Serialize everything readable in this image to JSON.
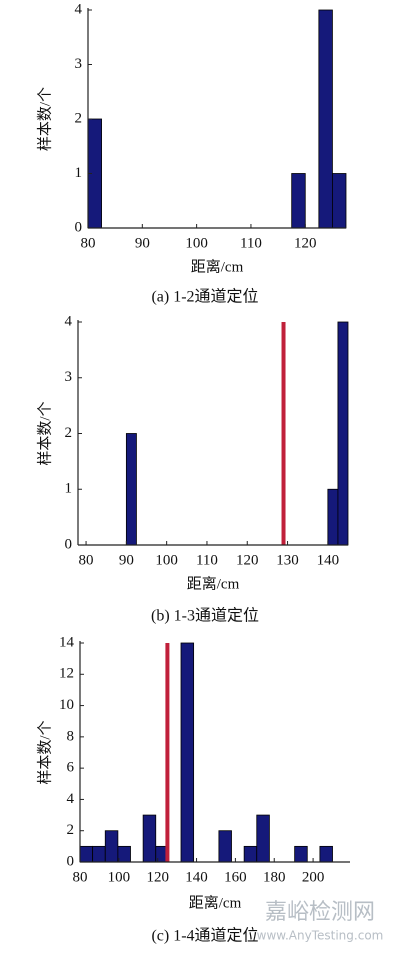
{
  "chart_data": [
    {
      "type": "histogram",
      "caption": "(a) 1-2通道定位",
      "x_label": "距离/cm",
      "y_label": "样本数/个",
      "color": "#15197a",
      "bins": [
        80,
        82.5,
        85,
        87.5,
        90,
        92.5,
        95,
        97.5,
        100,
        102.5,
        105,
        107.5,
        110,
        112.5,
        115,
        117.5,
        120,
        122.5,
        125,
        127.5
      ],
      "values": [
        2,
        0,
        0,
        0,
        0,
        0,
        0,
        0,
        0,
        0,
        0,
        0,
        0,
        0,
        0,
        1,
        0,
        4,
        1
      ],
      "xlim": [
        80,
        127.5
      ],
      "xticks": [
        80,
        90,
        100,
        110,
        120
      ],
      "ylim": [
        0,
        4
      ],
      "yticks": [
        0,
        1,
        2,
        3,
        4
      ]
    },
    {
      "type": "histogram",
      "caption": "(b) 1-3通道定位",
      "x_label": "距离/cm",
      "y_label": "样本数/个",
      "color": "#15197a",
      "bins": [
        80,
        82.5,
        85,
        87.5,
        90,
        92.5,
        95,
        97.5,
        100,
        102.5,
        105,
        107.5,
        110,
        112.5,
        115,
        117.5,
        120,
        122.5,
        125,
        127.5,
        130,
        132.5,
        135,
        137.5,
        140,
        142.5,
        145
      ],
      "values": [
        0,
        0,
        0,
        0,
        2,
        0,
        0,
        0,
        0,
        0,
        0,
        0,
        0,
        0,
        0,
        0,
        0,
        0,
        0,
        0,
        0,
        0,
        0,
        0,
        1,
        4
      ],
      "xlim": [
        78,
        145
      ],
      "xticks": [
        80,
        90,
        100,
        110,
        120,
        130,
        140
      ],
      "ylim": [
        0,
        4
      ],
      "yticks": [
        0,
        1,
        2,
        3,
        4
      ],
      "vline": 129,
      "vline_color": "#c0203a"
    },
    {
      "type": "histogram",
      "caption": "(c) 1-4通道定位",
      "x_label": "距离/cm",
      "y_label": "样本数/个",
      "color": "#15197a",
      "bins": [
        80,
        86.5,
        93,
        99.5,
        106,
        112.5,
        119,
        125.5,
        132,
        138.5,
        145,
        151.5,
        158,
        164.5,
        171,
        177.5,
        184,
        190.5,
        197,
        203.5,
        210
      ],
      "values": [
        1,
        1,
        2,
        1,
        0,
        3,
        1,
        0,
        14,
        0,
        0,
        2,
        0,
        1,
        3,
        0,
        0,
        1,
        0,
        1
      ],
      "xlim": [
        80,
        219
      ],
      "xticks": [
        80,
        100,
        120,
        140,
        160,
        180,
        200
      ],
      "ylim": [
        0,
        14
      ],
      "yticks": [
        0,
        2,
        4,
        6,
        8,
        10,
        12,
        14
      ],
      "vline": 125,
      "vline_color": "#c0203a"
    }
  ],
  "watermark": {
    "text": "嘉峪检测网",
    "url": "www.AnyTesting.com"
  }
}
